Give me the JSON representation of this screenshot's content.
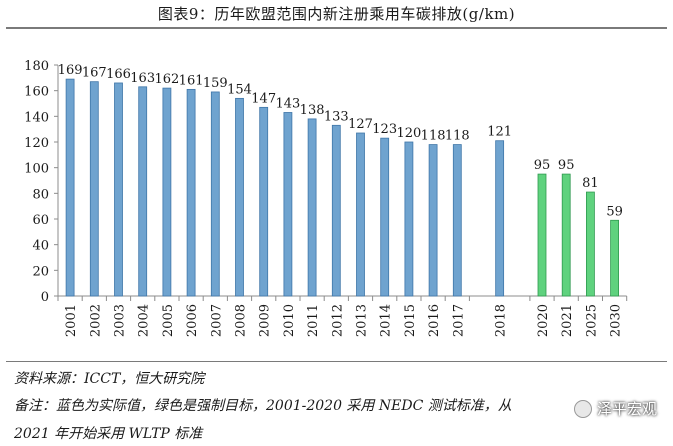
{
  "chart_data": {
    "type": "bar",
    "title": "图表9：历年欧盟范围内新注册乘用车碳排放(g/km)",
    "categories": [
      "2001",
      "2002",
      "2003",
      "2004",
      "2005",
      "2006",
      "2007",
      "2008",
      "2009",
      "2010",
      "2011",
      "2012",
      "2013",
      "2014",
      "2015",
      "2016",
      "2017",
      "2018",
      "2020",
      "2021",
      "2025",
      "2030"
    ],
    "values": [
      169,
      167,
      166,
      163,
      162,
      161,
      159,
      154,
      147,
      143,
      138,
      133,
      127,
      123,
      120,
      118,
      118,
      121,
      95,
      95,
      81,
      59
    ],
    "series_type": [
      "actual",
      "actual",
      "actual",
      "actual",
      "actual",
      "actual",
      "actual",
      "actual",
      "actual",
      "actual",
      "actual",
      "actual",
      "actual",
      "actual",
      "actual",
      "actual",
      "actual",
      "actual",
      "target",
      "target",
      "target",
      "target"
    ],
    "ylim": [
      0,
      180
    ],
    "yticks": [
      0,
      20,
      40,
      60,
      80,
      100,
      120,
      140,
      160,
      180
    ],
    "xlabel": "",
    "ylabel": "",
    "colors": {
      "actual": "#6fa3cf",
      "target": "#5fd27e"
    }
  },
  "source": "资料来源：ICCT，恒大研究院",
  "note_line1": "备注：蓝色为实际值，绿色是强制目标，2001-2020 采用 NEDC 测试标准，从",
  "note_line2": "2021 年开始采用 WLTP 标准",
  "watermark": {
    "text": "泽平宏观",
    "icon": "wechat-icon"
  }
}
